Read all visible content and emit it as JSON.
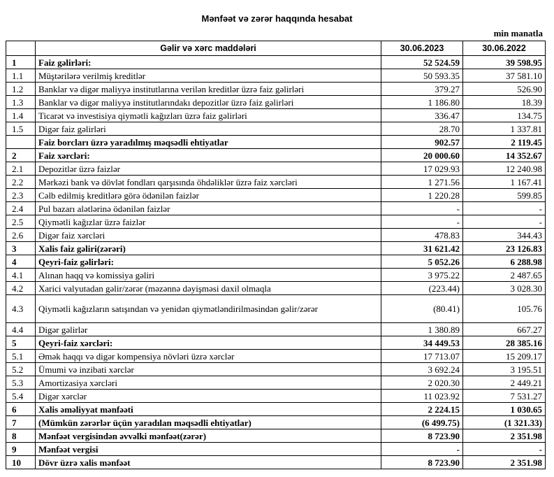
{
  "header": {
    "title": "Mənfəət və zərər haqqında hesabat",
    "unit": "min manatla"
  },
  "table": {
    "columns": [
      "Gəlir və xərc maddələri",
      "30.06.2023",
      "30.06.2022"
    ],
    "rows": [
      {
        "no": "1",
        "item": "Faiz gəlirləri:",
        "v2023": "52 524.59",
        "v2022": "39 598.95",
        "bold": true
      },
      {
        "no": "1.1",
        "item": "Müştərilərə verilmiş kreditlər",
        "v2023": "50 593.35",
        "v2022": "37 581.10"
      },
      {
        "no": "1.2",
        "item": "Banklar və digər maliyyə institutlarına verilən kreditlər üzrə faiz gəlirləri",
        "v2023": "379.27",
        "v2022": "526.90"
      },
      {
        "no": "1.3",
        "item": "Banklar və digər maliyyə institutlarındakı depozitlər üzrə faiz gəlirləri",
        "v2023": "1 186.80",
        "v2022": "18.39"
      },
      {
        "no": "1.4",
        "item": "Ticarət və investisiya qiymətli kağızları üzrə faiz gəlirləri",
        "v2023": "336.47",
        "v2022": "134.75"
      },
      {
        "no": "1.5",
        "item": "Digər faiz gəlirləri",
        "v2023": "28.70",
        "v2022": "1 337.81"
      },
      {
        "item": "Faiz borcları üzrə yaradılmış məqsədli ehtiyatlar",
        "v2023": "902.57",
        "v2022": "2 119.45",
        "bold": true
      },
      {
        "no": "2",
        "item": "Faiz xərcləri:",
        "v2023": "20 000.60",
        "v2022": "14 352.67",
        "bold": true
      },
      {
        "no": "2.1",
        "item": "Depozitlər üzrə faizlər",
        "v2023": "17 029.93",
        "v2022": "12 240.98"
      },
      {
        "no": "2.2",
        "item": "Mərkəzi bank və dövlət fondları qarşısında öhdəliklər üzrə faiz xərcləri",
        "v2023": "1 271.56",
        "v2022": "1 167.41"
      },
      {
        "no": "2.3",
        "item": "Cəlb edilmiş kreditlərə görə ödənilən faizlər",
        "v2023": "1 220.28",
        "v2022": "599.85"
      },
      {
        "no": "2.4",
        "item": "Pul bazarı alətlərinə ödənilən faizlər",
        "v2023": "-",
        "v2022": "-"
      },
      {
        "no": "2.5",
        "item": "Qiymətli kağızlar üzrə faizlər",
        "v2023": "-",
        "v2022": "-"
      },
      {
        "no": "2.6",
        "item": "Digər faiz xərcləri",
        "v2023": "478.83",
        "v2022": "344.43"
      },
      {
        "no": "3",
        "item": "Xalis faiz gəliri(zərəri)",
        "v2023": "31 621.42",
        "v2022": "23 126.83",
        "bold": true
      },
      {
        "no": "4",
        "item": "Qeyri-faiz gəlirləri:",
        "v2023": "5 052.26",
        "v2022": "6 288.98",
        "bold": true
      },
      {
        "no": "4.1",
        "item": "Alınan haqq və komissiya gəliri",
        "v2023": "3 975.22",
        "v2022": "2 487.65"
      },
      {
        "no": "4.2",
        "item": "Xarici valyutadan gəlir/zərər (məzənnə dəyişməsi daxil olmaqla",
        "v2023": "(223.44)",
        "v2022": "3 028.30"
      },
      {
        "no": "4.3",
        "item": "Qiymətli kağızların satışından və yenidən qiymətləndirilməsindən gəlir/zərər",
        "v2023": "(80.41)",
        "v2022": "105.76",
        "tall": true
      },
      {
        "no": "4.4",
        "item": "Digər gəlirlər",
        "v2023": "1 380.89",
        "v2022": "667.27"
      },
      {
        "no": "5",
        "item": "Qeyri-faiz xərcləri:",
        "v2023": "34 449.53",
        "v2022": "28 385.16",
        "bold": true
      },
      {
        "no": "5.1",
        "item": "Əmək haqqı və digər kompensiya növləri üzrə xərclər",
        "v2023": "17 713.07",
        "v2022": "15 209.17"
      },
      {
        "no": "5.2",
        "item": "Ümumi və inzibati xərclər",
        "v2023": "3 692.24",
        "v2022": "3 195.51"
      },
      {
        "no": "5.3",
        "item": "Amortizasiya xərcləri",
        "v2023": "2 020.30",
        "v2022": "2 449.21"
      },
      {
        "no": "5.4",
        "item": "Digər xərclər",
        "v2023": "11 023.92",
        "v2022": "7 531.27"
      },
      {
        "no": "6",
        "item": "Xalis əməliyyat mənfəəti",
        "v2023": "2 224.15",
        "v2022": "1 030.65",
        "bold": true
      },
      {
        "no": "7",
        "item": "(Mümkün zərərlər üçün yaradılan məqsədli ehtiyatlar)",
        "v2023": "(6 499.75)",
        "v2022": "(1 321.33)",
        "bold": true
      },
      {
        "no": "8",
        "item": "Mənfəət vergisindən əvvəlki mənfəət(zərər)",
        "v2023": "8 723.90",
        "v2022": "2 351.98",
        "bold": true
      },
      {
        "no": "9",
        "item": "Mənfəət vergisi",
        "v2023": "-",
        "v2022": "-",
        "bold": true
      },
      {
        "no": "10",
        "item": "Dövr üzrə xalis mənfəət",
        "v2023": "8 723.90",
        "v2022": "2 351.98",
        "bold": true
      }
    ]
  }
}
